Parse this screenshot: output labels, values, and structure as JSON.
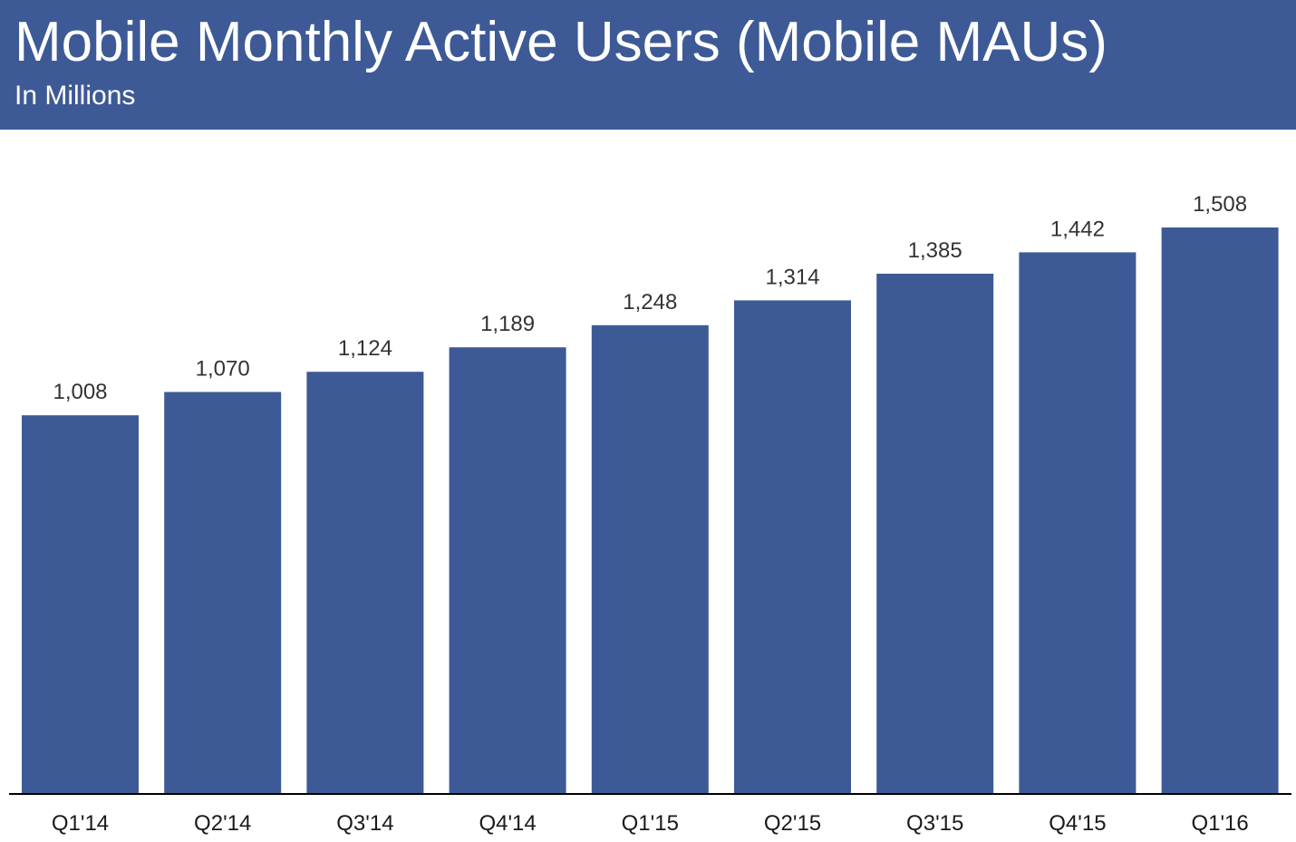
{
  "header": {
    "title": "Mobile Monthly Active Users (Mobile MAUs)",
    "subtitle": "In Millions"
  },
  "colors": {
    "header_bg": "#3d5a96",
    "bar": "#3d5a96",
    "header_text": "#ffffff"
  },
  "chart_data": {
    "type": "bar",
    "title": "Mobile Monthly Active Users (Mobile MAUs)",
    "subtitle": "In Millions",
    "xlabel": "",
    "ylabel": "",
    "categories": [
      "Q1'14",
      "Q2'14",
      "Q3'14",
      "Q4'14",
      "Q1'15",
      "Q2'15",
      "Q3'15",
      "Q4'15",
      "Q1'16"
    ],
    "values": [
      1008,
      1070,
      1124,
      1189,
      1248,
      1314,
      1385,
      1442,
      1508
    ],
    "value_labels": [
      "1,008",
      "1,070",
      "1,124",
      "1,189",
      "1,248",
      "1,314",
      "1,385",
      "1,442",
      "1,508"
    ],
    "ylim": [
      0,
      1508
    ],
    "grid": false,
    "legend": "none"
  }
}
